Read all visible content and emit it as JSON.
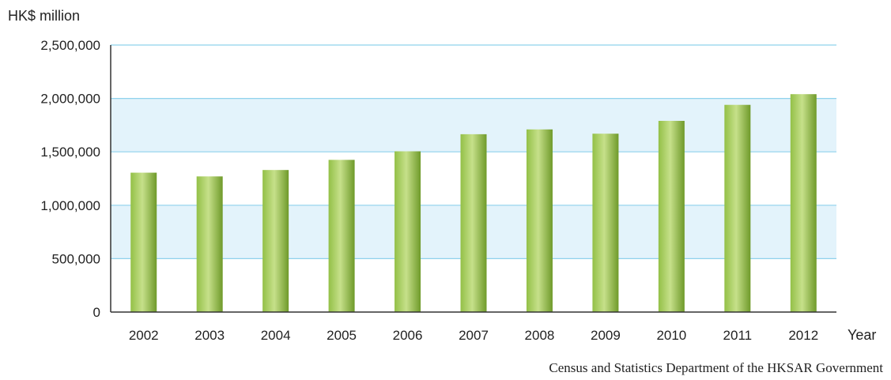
{
  "chart_data": {
    "type": "bar",
    "title": "",
    "ylabel": "HK$ million",
    "xlabel": "Year",
    "categories": [
      "2002",
      "2003",
      "2004",
      "2005",
      "2006",
      "2007",
      "2008",
      "2009",
      "2010",
      "2011",
      "2012"
    ],
    "values": [
      1305000,
      1270000,
      1330000,
      1425000,
      1505000,
      1665000,
      1710000,
      1670000,
      1790000,
      1940000,
      2040000
    ],
    "ylim": [
      0,
      2500000
    ],
    "yticks": [
      0,
      500000,
      1000000,
      1500000,
      2000000,
      2500000
    ],
    "ytick_labels": [
      "0",
      "500,000",
      "1,000,000",
      "1,500,000",
      "2,000,000",
      "2,500,000"
    ],
    "grid": true,
    "colors": {
      "bar_light": "#c6e08a",
      "bar_mid": "#93c047",
      "bar_dark": "#6f9a2a",
      "band": "#e3f3fb",
      "gridline": "#8fd2ec",
      "axis": "#333333"
    }
  },
  "source": "Census and Statistics Department of the HKSAR Government"
}
